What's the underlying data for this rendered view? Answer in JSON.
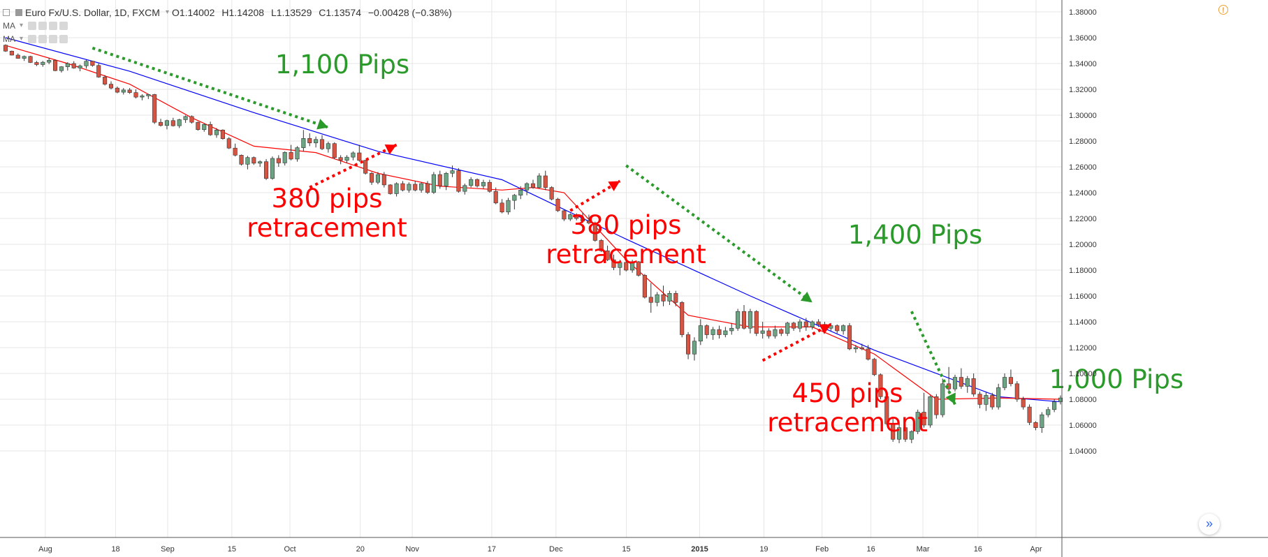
{
  "legend": {
    "symbol": "Euro Fx/U.S. Dollar, 1D, FXCM",
    "open": "O1.14002",
    "high": "H1.14208",
    "low": "L1.13529",
    "close": "C1.13574",
    "change": "−0.00428 (−0.38%)",
    "ma1": "MA",
    "ma2": "MA"
  },
  "icons": {
    "alert": "alert-icon",
    "scroll": "scroll-to-realtime-icon"
  },
  "scroll_glyph": "»",
  "alert_glyph": "!",
  "colors": {
    "up": "#6ba583",
    "down": "#d75442",
    "wick": "#333333",
    "ma_fast": "#ff0000",
    "ma_slow": "#0000ff",
    "annot_green": "#2a9a2a",
    "annot_red": "#ff0000",
    "grid": "#e6e6e6",
    "axis_text": "#333333"
  },
  "chart_data": {
    "type": "candlestick",
    "ylim": [
      1.03,
      1.385
    ],
    "y_ticks": [
      "1.38000",
      "1.36000",
      "1.34000",
      "1.32000",
      "1.30000",
      "1.28000",
      "1.26000",
      "1.24000",
      "1.22000",
      "1.20000",
      "1.18000",
      "1.16000",
      "1.14000",
      "1.12000",
      "1.10000",
      "1.08000",
      "1.06000",
      "1.04000"
    ],
    "x_ticks": [
      "Aug",
      "18",
      "Sep",
      "15",
      "Oct",
      "20",
      "Nov",
      "17",
      "Dec",
      "15",
      "2015",
      "19",
      "Feb",
      "16",
      "Mar",
      "16",
      "Apr"
    ],
    "candles": [
      [
        1.3542,
        1.3548,
        1.349,
        1.3496
      ],
      [
        1.3496,
        1.35,
        1.3462,
        1.3465
      ],
      [
        1.3465,
        1.3478,
        1.3438,
        1.344
      ],
      [
        1.344,
        1.3462,
        1.342,
        1.3455
      ],
      [
        1.3455,
        1.346,
        1.3405,
        1.3408
      ],
      [
        1.3408,
        1.342,
        1.338,
        1.3392
      ],
      [
        1.3392,
        1.342,
        1.3375,
        1.341
      ],
      [
        1.341,
        1.3445,
        1.3395,
        1.3425
      ],
      [
        1.3425,
        1.3432,
        1.334,
        1.3345
      ],
      [
        1.3345,
        1.338,
        1.333,
        1.3375
      ],
      [
        1.3375,
        1.341,
        1.3345,
        1.34
      ],
      [
        1.34,
        1.3418,
        1.336,
        1.3365
      ],
      [
        1.3365,
        1.3392,
        1.334,
        1.3382
      ],
      [
        1.3382,
        1.343,
        1.336,
        1.3418
      ],
      [
        1.3418,
        1.3422,
        1.3375,
        1.3385
      ],
      [
        1.3385,
        1.34,
        1.329,
        1.3295
      ],
      [
        1.3295,
        1.331,
        1.323,
        1.324
      ],
      [
        1.324,
        1.3262,
        1.32,
        1.321
      ],
      [
        1.321,
        1.3222,
        1.317,
        1.3178
      ],
      [
        1.3178,
        1.321,
        1.316,
        1.3195
      ],
      [
        1.3195,
        1.321,
        1.3165,
        1.3175
      ],
      [
        1.3175,
        1.32,
        1.313,
        1.314
      ],
      [
        1.314,
        1.3162,
        1.3115,
        1.315
      ],
      [
        1.315,
        1.3165,
        1.3125,
        1.316
      ],
      [
        1.316,
        1.3165,
        1.2932,
        1.2945
      ],
      [
        1.2945,
        1.2972,
        1.2912,
        1.292
      ],
      [
        1.292,
        1.2965,
        1.289,
        1.2958
      ],
      [
        1.2958,
        1.298,
        1.2912,
        1.2918
      ],
      [
        1.2918,
        1.2972,
        1.29,
        1.2965
      ],
      [
        1.2965,
        1.2998,
        1.294,
        1.299
      ],
      [
        1.299,
        1.2998,
        1.2935,
        1.2945
      ],
      [
        1.2945,
        1.295,
        1.288,
        1.2888
      ],
      [
        1.2888,
        1.2935,
        1.2872,
        1.2928
      ],
      [
        1.2928,
        1.295,
        1.284,
        1.2848
      ],
      [
        1.2848,
        1.29,
        1.2825,
        1.2885
      ],
      [
        1.2885,
        1.289,
        1.281,
        1.2818
      ],
      [
        1.2818,
        1.283,
        1.2738,
        1.2745
      ],
      [
        1.2745,
        1.278,
        1.268,
        1.269
      ],
      [
        1.269,
        1.2695,
        1.261,
        1.262
      ],
      [
        1.262,
        1.2685,
        1.258,
        1.2672
      ],
      [
        1.2672,
        1.268,
        1.2615,
        1.2628
      ],
      [
        1.2628,
        1.265,
        1.26,
        1.264
      ],
      [
        1.264,
        1.266,
        1.2498,
        1.251
      ],
      [
        1.251,
        1.268,
        1.25,
        1.2665
      ],
      [
        1.2665,
        1.269,
        1.26,
        1.263
      ],
      [
        1.263,
        1.272,
        1.261,
        1.2712
      ],
      [
        1.2712,
        1.277,
        1.265,
        1.266
      ],
      [
        1.266,
        1.276,
        1.264,
        1.2748
      ],
      [
        1.2748,
        1.2885,
        1.272,
        1.282
      ],
      [
        1.282,
        1.286,
        1.276,
        1.2785
      ],
      [
        1.2785,
        1.2835,
        1.275,
        1.2812
      ],
      [
        1.2812,
        1.2845,
        1.273,
        1.274
      ],
      [
        1.274,
        1.2795,
        1.271,
        1.278
      ],
      [
        1.278,
        1.279,
        1.266,
        1.2672
      ],
      [
        1.2672,
        1.269,
        1.262,
        1.265
      ],
      [
        1.265,
        1.269,
        1.263,
        1.2675
      ],
      [
        1.2675,
        1.272,
        1.265,
        1.2708
      ],
      [
        1.2708,
        1.277,
        1.264,
        1.265
      ],
      [
        1.265,
        1.2655,
        1.254,
        1.255
      ],
      [
        1.255,
        1.256,
        1.246,
        1.248
      ],
      [
        1.248,
        1.256,
        1.2465,
        1.254
      ],
      [
        1.254,
        1.256,
        1.244,
        1.246
      ],
      [
        1.246,
        1.2465,
        1.2385,
        1.2392
      ],
      [
        1.2392,
        1.248,
        1.237,
        1.247
      ],
      [
        1.247,
        1.249,
        1.241,
        1.242
      ],
      [
        1.242,
        1.248,
        1.24,
        1.2465
      ],
      [
        1.2465,
        1.249,
        1.241,
        1.242
      ],
      [
        1.242,
        1.248,
        1.24,
        1.247
      ],
      [
        1.247,
        1.249,
        1.239,
        1.2402
      ],
      [
        1.2402,
        1.256,
        1.239,
        1.254
      ],
      [
        1.254,
        1.257,
        1.243,
        1.2452
      ],
      [
        1.2452,
        1.256,
        1.242,
        1.255
      ],
      [
        1.255,
        1.261,
        1.252,
        1.257
      ],
      [
        1.257,
        1.259,
        1.24,
        1.241
      ],
      [
        1.241,
        1.247,
        1.2385,
        1.2455
      ],
      [
        1.2455,
        1.252,
        1.244,
        1.2502
      ],
      [
        1.2502,
        1.251,
        1.244,
        1.2452
      ],
      [
        1.2452,
        1.25,
        1.243,
        1.248
      ],
      [
        1.248,
        1.25,
        1.24,
        1.241
      ],
      [
        1.241,
        1.244,
        1.231,
        1.232
      ],
      [
        1.232,
        1.235,
        1.224,
        1.225
      ],
      [
        1.225,
        1.236,
        1.223,
        1.234
      ],
      [
        1.234,
        1.239,
        1.227,
        1.238
      ],
      [
        1.238,
        1.245,
        1.235,
        1.242
      ],
      [
        1.242,
        1.248,
        1.238,
        1.247
      ],
      [
        1.247,
        1.25,
        1.243,
        1.244
      ],
      [
        1.244,
        1.255,
        1.243,
        1.253
      ],
      [
        1.253,
        1.257,
        1.242,
        1.244
      ],
      [
        1.244,
        1.245,
        1.234,
        1.235
      ],
      [
        1.235,
        1.236,
        1.225,
        1.226
      ],
      [
        1.226,
        1.227,
        1.218,
        1.2195
      ],
      [
        1.2195,
        1.224,
        1.218,
        1.223
      ],
      [
        1.223,
        1.224,
        1.2185,
        1.22
      ],
      [
        1.22,
        1.2245,
        1.2165,
        1.218
      ],
      [
        1.218,
        1.223,
        1.2155,
        1.2165
      ],
      [
        1.2165,
        1.2175,
        1.202,
        1.203
      ],
      [
        1.203,
        1.204,
        1.194,
        1.195
      ],
      [
        1.195,
        1.199,
        1.187,
        1.188
      ],
      [
        1.188,
        1.192,
        1.18,
        1.182
      ],
      [
        1.182,
        1.188,
        1.176,
        1.186
      ],
      [
        1.186,
        1.189,
        1.179,
        1.18
      ],
      [
        1.18,
        1.188,
        1.178,
        1.1865
      ],
      [
        1.1865,
        1.187,
        1.175,
        1.176
      ],
      [
        1.176,
        1.177,
        1.158,
        1.159
      ],
      [
        1.159,
        1.17,
        1.147,
        1.155
      ],
      [
        1.155,
        1.163,
        1.152,
        1.161
      ],
      [
        1.161,
        1.168,
        1.152,
        1.156
      ],
      [
        1.156,
        1.164,
        1.153,
        1.162
      ],
      [
        1.162,
        1.164,
        1.152,
        1.155
      ],
      [
        1.155,
        1.156,
        1.128,
        1.13
      ],
      [
        1.13,
        1.132,
        1.111,
        1.115
      ],
      [
        1.115,
        1.128,
        1.11,
        1.125
      ],
      [
        1.125,
        1.142,
        1.122,
        1.137
      ],
      [
        1.137,
        1.138,
        1.127,
        1.13
      ],
      [
        1.13,
        1.136,
        1.126,
        1.134
      ],
      [
        1.134,
        1.137,
        1.127,
        1.13
      ],
      [
        1.13,
        1.136,
        1.128,
        1.133
      ],
      [
        1.133,
        1.139,
        1.13,
        1.135
      ],
      [
        1.135,
        1.15,
        1.133,
        1.148
      ],
      [
        1.148,
        1.153,
        1.134,
        1.135
      ],
      [
        1.135,
        1.15,
        1.131,
        1.148
      ],
      [
        1.148,
        1.149,
        1.129,
        1.131
      ],
      [
        1.131,
        1.14,
        1.127,
        1.133
      ],
      [
        1.133,
        1.135,
        1.127,
        1.129
      ],
      [
        1.129,
        1.137,
        1.127,
        1.134
      ],
      [
        1.134,
        1.135,
        1.129,
        1.131
      ],
      [
        1.131,
        1.14,
        1.129,
        1.139
      ],
      [
        1.139,
        1.14,
        1.133,
        1.135
      ],
      [
        1.135,
        1.142,
        1.132,
        1.14
      ],
      [
        1.14,
        1.143,
        1.133,
        1.136
      ],
      [
        1.136,
        1.141,
        1.134,
        1.14
      ],
      [
        1.14,
        1.142,
        1.136,
        1.138
      ],
      [
        1.138,
        1.14,
        1.132,
        1.135
      ],
      [
        1.135,
        1.139,
        1.133,
        1.137
      ],
      [
        1.137,
        1.138,
        1.131,
        1.133
      ],
      [
        1.133,
        1.138,
        1.13,
        1.137
      ],
      [
        1.137,
        1.139,
        1.118,
        1.119
      ],
      [
        1.119,
        1.122,
        1.116,
        1.12
      ],
      [
        1.12,
        1.123,
        1.118,
        1.119
      ],
      [
        1.119,
        1.122,
        1.11,
        1.111
      ],
      [
        1.111,
        1.112,
        1.098,
        1.099
      ],
      [
        1.099,
        1.1,
        1.08,
        1.082
      ],
      [
        1.082,
        1.085,
        1.06,
        1.061
      ],
      [
        1.061,
        1.065,
        1.047,
        1.049
      ],
      [
        1.049,
        1.062,
        1.046,
        1.058
      ],
      [
        1.058,
        1.06,
        1.047,
        1.049
      ],
      [
        1.049,
        1.056,
        1.046,
        1.055
      ],
      [
        1.055,
        1.072,
        1.053,
        1.07
      ],
      [
        1.07,
        1.085,
        1.058,
        1.06
      ],
      [
        1.06,
        1.083,
        1.058,
        1.082
      ],
      [
        1.082,
        1.084,
        1.065,
        1.068
      ],
      [
        1.068,
        1.096,
        1.066,
        1.092
      ],
      [
        1.092,
        1.105,
        1.085,
        1.088
      ],
      [
        1.088,
        1.099,
        1.086,
        1.097
      ],
      [
        1.097,
        1.104,
        1.088,
        1.09
      ],
      [
        1.09,
        1.098,
        1.085,
        1.096
      ],
      [
        1.096,
        1.1,
        1.082,
        1.084
      ],
      [
        1.084,
        1.086,
        1.073,
        1.076
      ],
      [
        1.076,
        1.086,
        1.071,
        1.083
      ],
      [
        1.083,
        1.085,
        1.072,
        1.074
      ],
      [
        1.074,
        1.092,
        1.072,
        1.089
      ],
      [
        1.089,
        1.1,
        1.087,
        1.097
      ],
      [
        1.097,
        1.103,
        1.09,
        1.092
      ],
      [
        1.092,
        1.094,
        1.078,
        1.08
      ],
      [
        1.08,
        1.082,
        1.072,
        1.074
      ],
      [
        1.074,
        1.076,
        1.06,
        1.062
      ],
      [
        1.062,
        1.063,
        1.056,
        1.058
      ],
      [
        1.058,
        1.07,
        1.054,
        1.068
      ],
      [
        1.068,
        1.074,
        1.066,
        1.072
      ],
      [
        1.072,
        1.08,
        1.07,
        1.078
      ],
      [
        1.078,
        1.083,
        1.076,
        1.081
      ]
    ],
    "series": [
      {
        "name": "",
        "color": "#0000ff",
        "x": [
          0,
          20,
          40,
          60,
          80,
          100,
          120,
          140,
          160,
          170
        ],
        "values": [
          1.36,
          1.334,
          1.302,
          1.272,
          1.25,
          1.204,
          1.16,
          1.118,
          1.082,
          1.078
        ]
      },
      {
        "name": "",
        "color": "#ff0000",
        "x": [
          0,
          10,
          20,
          30,
          40,
          50,
          60,
          70,
          80,
          85,
          90,
          100,
          110,
          120,
          130,
          140,
          150,
          160,
          170
        ],
        "values": [
          1.354,
          1.34,
          1.324,
          1.298,
          1.276,
          1.271,
          1.255,
          1.245,
          1.242,
          1.244,
          1.24,
          1.188,
          1.145,
          1.136,
          1.136,
          1.115,
          1.08,
          1.081,
          1.08
        ]
      }
    ],
    "annotations": [
      {
        "text": "1,100 Pips",
        "color": "green"
      },
      {
        "text": "380 pips\nretracement",
        "color": "red"
      },
      {
        "text": "380 pips\nretracement",
        "color": "red"
      },
      {
        "text": "1,400 Pips",
        "color": "green"
      },
      {
        "text": "450 pips\nretracement",
        "color": "red"
      },
      {
        "text": "1,000 Pips",
        "color": "green"
      }
    ],
    "arrows": [
      {
        "color": "green",
        "from": [
          14,
          1.352
        ],
        "to": [
          52,
          1.2905
        ]
      },
      {
        "color": "red",
        "from": [
          49,
          1.244
        ],
        "to": [
          63,
          1.277
        ]
      },
      {
        "color": "red",
        "from": [
          91,
          1.226
        ],
        "to": [
          99,
          1.249
        ]
      },
      {
        "color": "green",
        "from": [
          100,
          1.261
        ],
        "to": [
          130,
          1.155
        ]
      },
      {
        "color": "red",
        "from": [
          122,
          1.11
        ],
        "to": [
          133,
          1.138
        ]
      },
      {
        "color": "green",
        "from": [
          146,
          1.148
        ],
        "to": [
          153,
          1.076
        ]
      }
    ]
  }
}
